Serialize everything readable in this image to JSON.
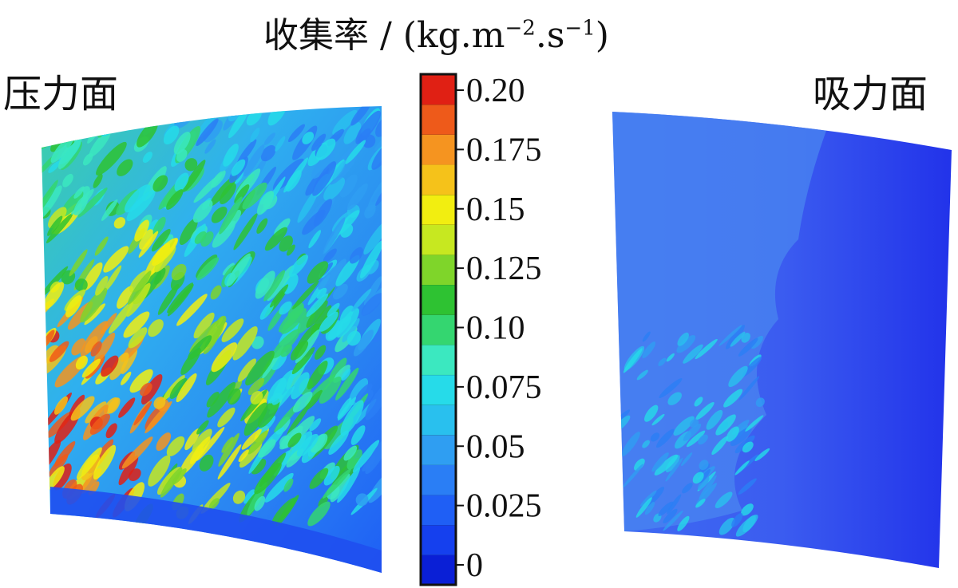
{
  "chart_data": {
    "type": "heatmap",
    "title": "收集率 / (kg·m⁻²·s⁻¹)",
    "title_parts": {
      "main": "收集率 / (kg.m",
      "exp1": "−2",
      "mid": ".s",
      "exp2": "−1",
      "end": ")"
    },
    "panels": [
      {
        "name": "压力面",
        "dominant_range": [
          0.05,
          0.2
        ]
      },
      {
        "name": "吸力面",
        "dominant_range": [
          0.0,
          0.05
        ]
      }
    ],
    "colorbar": {
      "min": 0,
      "max": 0.2,
      "ticks": [
        {
          "value": 0.2,
          "label": "0.20"
        },
        {
          "value": 0.175,
          "label": "0.175"
        },
        {
          "value": 0.15,
          "label": "0.15"
        },
        {
          "value": 0.125,
          "label": "0.125"
        },
        {
          "value": 0.1,
          "label": "0.10"
        },
        {
          "value": 0.075,
          "label": "0.075"
        },
        {
          "value": 0.05,
          "label": "0.05"
        },
        {
          "value": 0.025,
          "label": "0.025"
        },
        {
          "value": 0,
          "label": "0"
        }
      ],
      "levels": 16,
      "colors": [
        "#0a1fd6",
        "#1540ee",
        "#1f5ff5",
        "#2a7ef5",
        "#2f9ef2",
        "#29c0ee",
        "#26dbe9",
        "#3be8c0",
        "#34d670",
        "#2ec232",
        "#7fd52a",
        "#c7e820",
        "#f2ee10",
        "#f5c21a",
        "#f59420",
        "#ee5a1a",
        "#e02014"
      ]
    }
  }
}
